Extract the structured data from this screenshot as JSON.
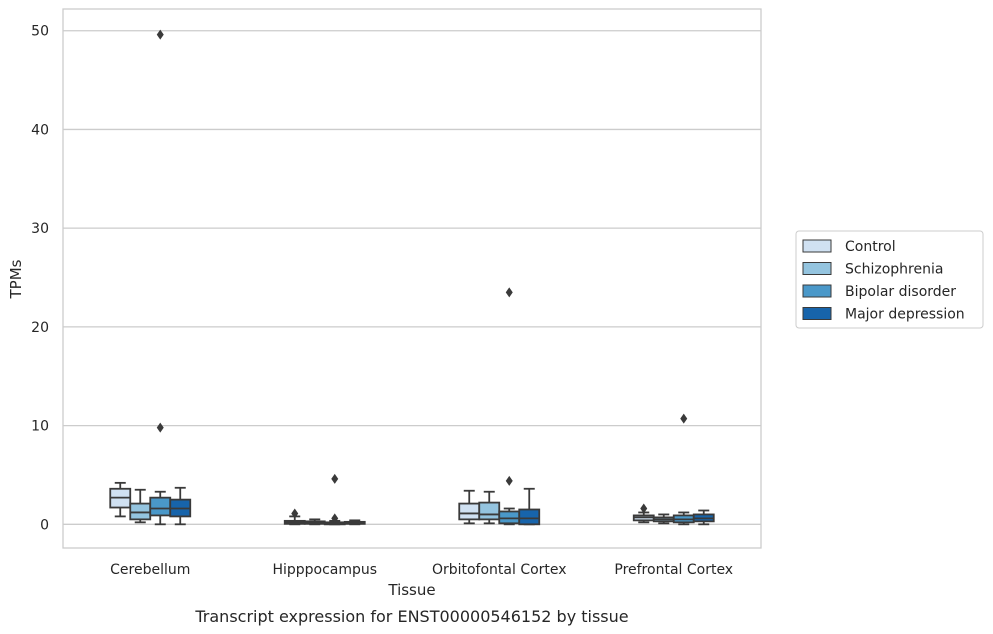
{
  "chart_data": {
    "type": "box",
    "caption": "Transcript expression for ENST00000546152 by tissue",
    "xlabel": "Tissue",
    "ylabel": "TPMs",
    "ylim": [
      -2.4,
      52.2
    ],
    "yticks": [
      0,
      10,
      20,
      30,
      40,
      50
    ],
    "grid": "horizontal",
    "legend_position": "right",
    "categories": [
      "Cerebellum",
      "Hipppocampus",
      "Orbitofontal Cortex",
      "Prefrontal Cortex"
    ],
    "series": [
      {
        "name": "Control",
        "color": "#d0e1f2",
        "boxes": [
          {
            "whislo": 0.8,
            "q1": 1.7,
            "med": 2.7,
            "q3": 3.6,
            "whishi": 4.2,
            "fliers": []
          },
          {
            "whislo": 0.0,
            "q1": 0.05,
            "med": 0.2,
            "q3": 0.35,
            "whishi": 0.8,
            "fliers": [
              1.1
            ]
          },
          {
            "whislo": 0.1,
            "q1": 0.5,
            "med": 1.1,
            "q3": 2.1,
            "whishi": 3.4,
            "fliers": []
          },
          {
            "whislo": 0.2,
            "q1": 0.4,
            "med": 0.7,
            "q3": 0.9,
            "whishi": 1.2,
            "fliers": [
              1.6
            ]
          }
        ]
      },
      {
        "name": "Schizophrenia",
        "color": "#94c4df",
        "boxes": [
          {
            "whislo": 0.2,
            "q1": 0.5,
            "med": 1.2,
            "q3": 2.1,
            "whishi": 3.5,
            "fliers": []
          },
          {
            "whislo": 0.0,
            "q1": 0.05,
            "med": 0.15,
            "q3": 0.3,
            "whishi": 0.5,
            "fliers": []
          },
          {
            "whislo": 0.1,
            "q1": 0.5,
            "med": 1.0,
            "q3": 2.2,
            "whishi": 3.3,
            "fliers": []
          },
          {
            "whislo": 0.1,
            "q1": 0.3,
            "med": 0.5,
            "q3": 0.7,
            "whishi": 1.0,
            "fliers": []
          }
        ]
      },
      {
        "name": "Bipolar disorder",
        "color": "#4a98c9",
        "boxes": [
          {
            "whislo": 0.0,
            "q1": 0.9,
            "med": 1.6,
            "q3": 2.7,
            "whishi": 3.3,
            "fliers": [
              9.8,
              49.6
            ]
          },
          {
            "whislo": 0.0,
            "q1": 0.05,
            "med": 0.1,
            "q3": 0.2,
            "whishi": 0.35,
            "fliers": [
              0.6,
              4.6
            ]
          },
          {
            "whislo": 0.0,
            "q1": 0.1,
            "med": 0.6,
            "q3": 1.3,
            "whishi": 1.6,
            "fliers": [
              4.4,
              23.5
            ]
          },
          {
            "whislo": 0.0,
            "q1": 0.2,
            "med": 0.5,
            "q3": 0.9,
            "whishi": 1.2,
            "fliers": [
              10.7
            ]
          }
        ]
      },
      {
        "name": "Major depression",
        "color": "#1764ab",
        "boxes": [
          {
            "whislo": 0.0,
            "q1": 0.8,
            "med": 1.6,
            "q3": 2.5,
            "whishi": 3.7,
            "fliers": []
          },
          {
            "whislo": 0.0,
            "q1": 0.05,
            "med": 0.15,
            "q3": 0.25,
            "whishi": 0.4,
            "fliers": []
          },
          {
            "whislo": 0.0,
            "q1": 0.0,
            "med": 0.6,
            "q3": 1.5,
            "whishi": 3.6,
            "fliers": []
          },
          {
            "whislo": 0.0,
            "q1": 0.3,
            "med": 0.6,
            "q3": 1.0,
            "whishi": 1.4,
            "fliers": []
          }
        ]
      }
    ]
  }
}
